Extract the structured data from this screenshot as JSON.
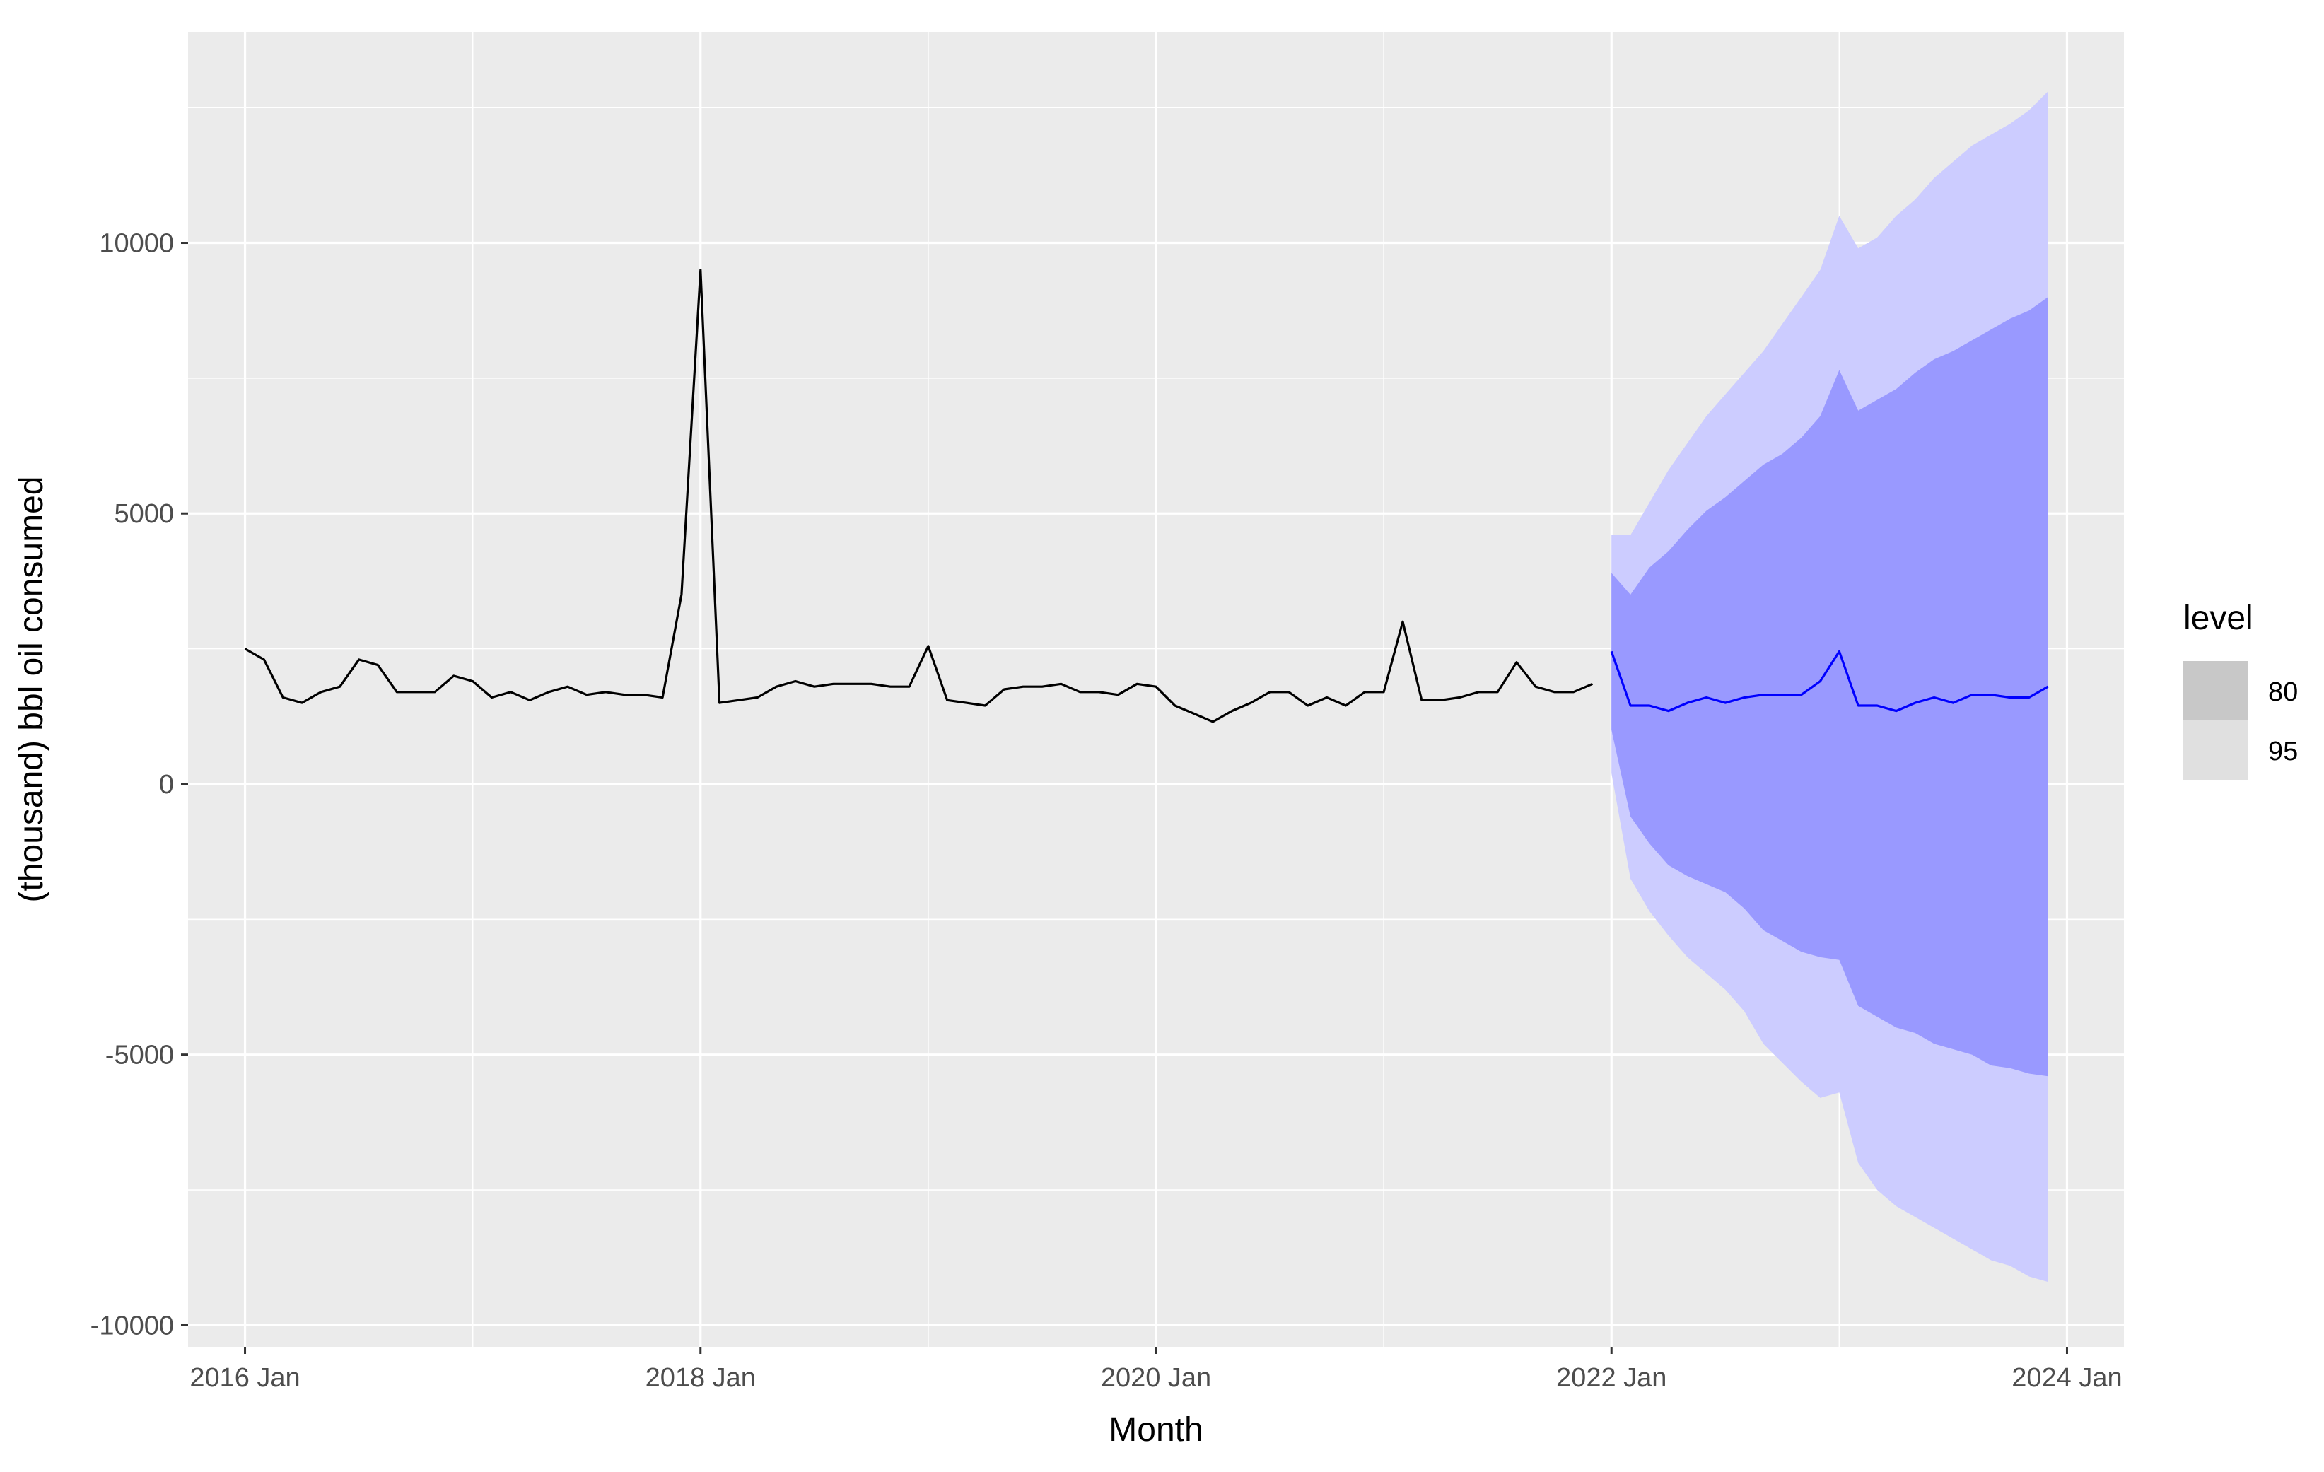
{
  "chart_data": {
    "type": "line",
    "xlabel": "Month",
    "ylabel": "(thousand) bbl oil consumed",
    "xlim": [
      "2015-10",
      "2024-04"
    ],
    "ylim": [
      -10400,
      13900
    ],
    "x_ticks": [
      "2016 Jan",
      "2018 Jan",
      "2020 Jan",
      "2022 Jan",
      "2024 Jan"
    ],
    "x_tick_months": [
      "2016-01",
      "2018-01",
      "2020-01",
      "2022-01",
      "2024-01"
    ],
    "x_minor_grid_months": [
      "2017-01",
      "2019-01",
      "2021-01",
      "2023-01"
    ],
    "y_ticks": [
      -10000,
      -5000,
      0,
      5000,
      10000
    ],
    "y_tick_labels": [
      "-10000",
      "-5000",
      "0",
      "5000",
      "10000"
    ],
    "y_minor_grid": [
      -7500,
      -2500,
      2500,
      7500,
      12500
    ],
    "grid": true,
    "legend": {
      "title": "level",
      "position": "right",
      "entries": [
        {
          "label": "80",
          "color": "#c8c8c8"
        },
        {
          "label": "95",
          "color": "#e0e0e0"
        }
      ]
    },
    "colors": {
      "panel": "#ebebeb",
      "grid": "#ffffff",
      "history": "#000000",
      "forecast": "#0000ff",
      "pi95": "#ccccff",
      "pi80": "#9999ff"
    },
    "history": {
      "start_month": "2016-01",
      "values": [
        2500,
        2300,
        1600,
        1500,
        1700,
        1800,
        2300,
        2200,
        1700,
        1700,
        1700,
        2000,
        1900,
        1600,
        1700,
        1550,
        1700,
        1800,
        1650,
        1700,
        1650,
        1650,
        1600,
        3500,
        9500,
        1500,
        1550,
        1600,
        1800,
        1900,
        1800,
        1850,
        1850,
        1850,
        1800,
        1800,
        2550,
        1550,
        1500,
        1450,
        1750,
        1800,
        1800,
        1850,
        1700,
        1700,
        1650,
        1850,
        1800,
        1450,
        1300,
        1150,
        1350,
        1500,
        1700,
        1700,
        1450,
        1600,
        1450,
        1700,
        1700,
        3000,
        1550,
        1550,
        1600,
        1700,
        1700,
        2250,
        1800,
        1700,
        1700,
        1850
      ]
    },
    "forecast": {
      "start_month": "2022-01",
      "mean": [
        2450,
        1450,
        1450,
        1350,
        1500,
        1600,
        1500,
        1600,
        1650,
        1650,
        1650,
        1900,
        2450,
        1450,
        1450,
        1350,
        1500,
        1600,
        1500,
        1650,
        1650,
        1600,
        1600,
        1800
      ],
      "lo80": [
        1000,
        -600,
        -1100,
        -1500,
        -1700,
        -1850,
        -2000,
        -2300,
        -2700,
        -2900,
        -3100,
        -3200,
        -3250,
        -4100,
        -4300,
        -4500,
        -4600,
        -4800,
        -4900,
        -5000,
        -5200,
        -5250,
        -5350,
        -5400
      ],
      "hi80": [
        3900,
        3500,
        4000,
        4300,
        4700,
        5050,
        5300,
        5600,
        5900,
        6100,
        6400,
        6800,
        7650,
        6900,
        7100,
        7300,
        7600,
        7850,
        8000,
        8200,
        8400,
        8600,
        8750,
        9000
      ],
      "lo95": [
        200,
        -1750,
        -2350,
        -2800,
        -3200,
        -3500,
        -3800,
        -4200,
        -4800,
        -5150,
        -5500,
        -5800,
        -5700,
        -7000,
        -7500,
        -7800,
        -8000,
        -8200,
        -8400,
        -8600,
        -8800,
        -8900,
        -9100,
        -9200
      ],
      "hi95": [
        4600,
        4600,
        5200,
        5800,
        6300,
        6800,
        7200,
        7600,
        8000,
        8500,
        9000,
        9500,
        10500,
        9900,
        10100,
        10500,
        10800,
        11200,
        11500,
        11800,
        12000,
        12200,
        12450,
        12800
      ]
    }
  }
}
